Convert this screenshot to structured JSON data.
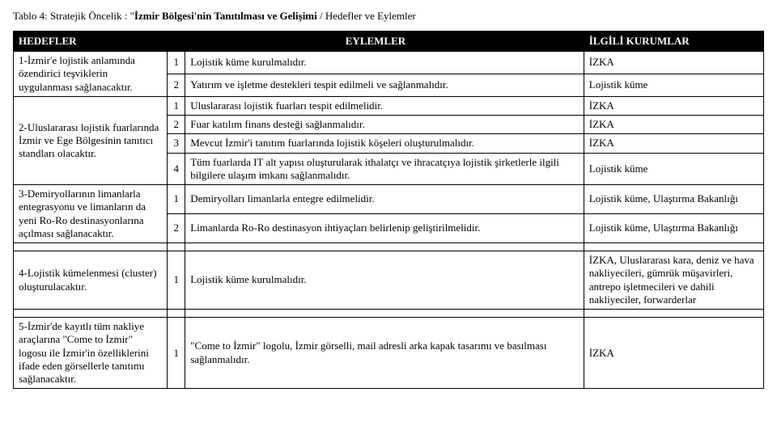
{
  "caption_prefix": "Tablo 4: Stratejik Öncelik :   \"",
  "caption_bold": "İzmir Bölgesi'nin Tanıtılması ve Gelişimi",
  "caption_suffix": " / Hedefler ve Eylemler",
  "headers": {
    "hedefler": "HEDEFLER",
    "eylemler": "EYLEMLER",
    "ilgili": "İLGİLİ KURUMLAR"
  },
  "g1": {
    "goal": "1-İzmir'e lojistik anlamında özendirici teşviklerin uygulanması sağlanacaktır.",
    "r1": {
      "n": "1",
      "e": "Lojistik küme kurulmalıdır.",
      "i": "İZKA"
    },
    "r2": {
      "n": "2",
      "e": "Yatırım ve işletme destekleri tespit edilmeli ve sağlanmalıdır.",
      "i": "Lojistik küme"
    }
  },
  "g2": {
    "goal": "2-Uluslararası lojistik fuarlarında İzmir ve Ege Bölgesinin tanıtıcı standları olacaktır.",
    "r1": {
      "n": "1",
      "e": "Uluslararası lojistik fuarları tespit edilmelidir.",
      "i": "İZKA"
    },
    "r2": {
      "n": "2",
      "e": "Fuar katılım finans desteği sağlanmalıdır.",
      "i": "İZKA"
    },
    "r3": {
      "n": "3",
      "e": "Mevcut İzmir'i tanıtım fuarlarında lojistik köşeleri oluşturulmalıdır.",
      "i": "İZKA"
    },
    "r4": {
      "n": "4",
      "e": "Tüm fuarlarda IT alt yapısı oluşturularak ithalatçı ve ihracatçıya lojistik şirketlerle ilgili bilgilere ulaşım imkanı sağlanmalıdır.",
      "i": "Lojistik küme"
    }
  },
  "g3": {
    "goal": "3-Demiryollarının limanlarla entegrasyonu ve limanların da yeni Ro-Ro destinasyonlarına açılması sağlanacaktır.",
    "r1": {
      "n": "1",
      "e": "Demiryolları limanlarla entegre edilmelidir.",
      "i": "Lojistik küme, Ulaştırma Bakanlığı"
    },
    "r2": {
      "n": "2",
      "e": "Limanlarda Ro-Ro destinasyon ihtiyaçları belirlenip geliştirilmelidir.",
      "i": "Lojistik küme, Ulaştırma Bakanlığı"
    }
  },
  "g4": {
    "goal": "4-Lojistik kümelenmesi (cluster) oluşturulacaktır.",
    "r1": {
      "n": "1",
      "e": "Lojistik küme kurulmalıdır.",
      "i": "İZKA, Uluslararası kara, deniz ve hava nakliyecileri, gümrük müşavirleri, antrepo işletmecileri ve dahili nakliyeciler, forwarderlar"
    }
  },
  "g5": {
    "goal": "5-İzmir'de kayıtlı tüm nakliye araçlarına \"Come to İzmir\" logosu ile İzmir'in özelliklerini ifade eden görsellerle tanıtımı sağlanacaktır.",
    "r1": {
      "n": "1",
      "e": "\"Come to İzmir\" logolu, İzmir görselli, mail adresli arka kapak tasarımı ve basılması sağlanmalıdır.",
      "i": "İZKA"
    }
  }
}
